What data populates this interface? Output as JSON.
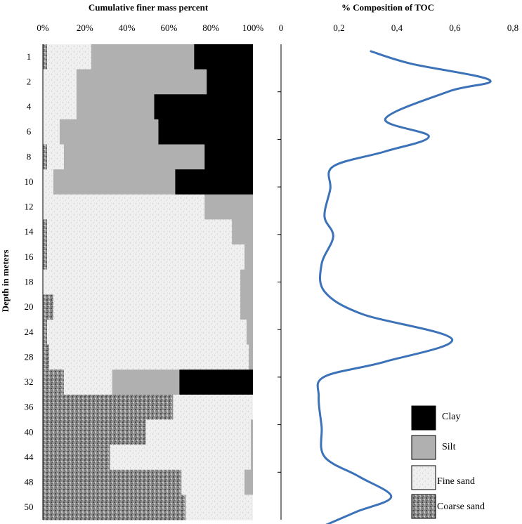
{
  "chart_data": [
    {
      "type": "bar",
      "orientation": "horizontal-stacked",
      "title": "Cumulative finer mass percent",
      "ylabel": "Depth in meters",
      "xlim": [
        0,
        100
      ],
      "x_tick_labels": [
        "0%",
        "20%",
        "40%",
        "60%",
        "80%",
        "100%"
      ],
      "depth_labels": [
        "1",
        "2",
        "4",
        "6",
        "8",
        "10",
        "12",
        "14",
        "16",
        "18",
        "20",
        "24",
        "28",
        "32",
        "36",
        "40",
        "44",
        "48",
        "50"
      ],
      "series_order": [
        "Coarse sand",
        "Fine sand",
        "Silt",
        "Clay"
      ],
      "colors": {
        "Coarse sand": "#7a7a7a",
        "Fine sand": "#efefef",
        "Silt": "#b0b0b0",
        "Clay": "#000000"
      },
      "levels": [
        {
          "depth": "1",
          "coarse_end": 2,
          "fine_end": 23,
          "silt_end": 72
        },
        {
          "depth": "2",
          "coarse_end": 0,
          "fine_end": 16,
          "silt_end": 78
        },
        {
          "depth": "4",
          "coarse_end": 0,
          "fine_end": 16,
          "silt_end": 53
        },
        {
          "depth": "6",
          "coarse_end": 0,
          "fine_end": 8,
          "silt_end": 55
        },
        {
          "depth": "8",
          "coarse_end": 2,
          "fine_end": 10,
          "silt_end": 77
        },
        {
          "depth": "10",
          "coarse_end": 0,
          "fine_end": 5,
          "silt_end": 63
        },
        {
          "depth": "12",
          "coarse_end": 0,
          "fine_end": 77,
          "silt_end": 100
        },
        {
          "depth": "14",
          "coarse_end": 2,
          "fine_end": 90,
          "silt_end": 100
        },
        {
          "depth": "16",
          "coarse_end": 2,
          "fine_end": 96,
          "silt_end": 100
        },
        {
          "depth": "18",
          "coarse_end": 0,
          "fine_end": 94,
          "silt_end": 100
        },
        {
          "depth": "20",
          "coarse_end": 5,
          "fine_end": 94,
          "silt_end": 100
        },
        {
          "depth": "24",
          "coarse_end": 2,
          "fine_end": 97,
          "silt_end": 100
        },
        {
          "depth": "28",
          "coarse_end": 3,
          "fine_end": 98,
          "silt_end": 100
        },
        {
          "depth": "32",
          "coarse_end": 10,
          "fine_end": 33,
          "silt_end": 65
        },
        {
          "depth": "36",
          "coarse_end": 62,
          "fine_end": 100,
          "silt_end": 100
        },
        {
          "depth": "40",
          "coarse_end": 49,
          "fine_end": 99,
          "silt_end": 100
        },
        {
          "depth": "44",
          "coarse_end": 32,
          "fine_end": 99,
          "silt_end": 100
        },
        {
          "depth": "48",
          "coarse_end": 66,
          "fine_end": 96,
          "silt_end": 100
        },
        {
          "depth": "50",
          "coarse_end": 68,
          "fine_end": 100,
          "silt_end": 100
        }
      ],
      "legend": [
        "Clay",
        "Silt",
        "Fine sand",
        "Coarse sand"
      ],
      "legend_position": "bottom-right"
    },
    {
      "type": "line",
      "title": "% Composition of TOC",
      "xlim": [
        0,
        0.8
      ],
      "x_tick_labels": [
        "0",
        "0,2",
        "0,4",
        "0,6",
        "0,8"
      ],
      "color": "#3c72b8",
      "points": [
        {
          "depth_index": 0.0,
          "toc": 0.31
        },
        {
          "depth_index": 0.5,
          "toc": 0.45
        },
        {
          "depth_index": 1.15,
          "toc": 0.72
        },
        {
          "depth_index": 1.6,
          "toc": 0.58
        },
        {
          "depth_index": 2.7,
          "toc": 0.36
        },
        {
          "depth_index": 3.4,
          "toc": 0.51
        },
        {
          "depth_index": 4.0,
          "toc": 0.36
        },
        {
          "depth_index": 4.6,
          "toc": 0.18
        },
        {
          "depth_index": 5.5,
          "toc": 0.17
        },
        {
          "depth_index": 6.6,
          "toc": 0.15
        },
        {
          "depth_index": 7.4,
          "toc": 0.18
        },
        {
          "depth_index": 8.5,
          "toc": 0.14
        },
        {
          "depth_index": 9.6,
          "toc": 0.15
        },
        {
          "depth_index": 10.5,
          "toc": 0.28
        },
        {
          "depth_index": 11.5,
          "toc": 0.59
        },
        {
          "depth_index": 12.4,
          "toc": 0.36
        },
        {
          "depth_index": 13.0,
          "toc": 0.15
        },
        {
          "depth_index": 13.8,
          "toc": 0.13
        },
        {
          "depth_index": 15.0,
          "toc": 0.14
        },
        {
          "depth_index": 16.2,
          "toc": 0.15
        },
        {
          "depth_index": 17.0,
          "toc": 0.27
        },
        {
          "depth_index": 17.8,
          "toc": 0.38
        },
        {
          "depth_index": 18.4,
          "toc": 0.26
        },
        {
          "depth_index": 19.0,
          "toc": 0.14
        }
      ]
    }
  ]
}
